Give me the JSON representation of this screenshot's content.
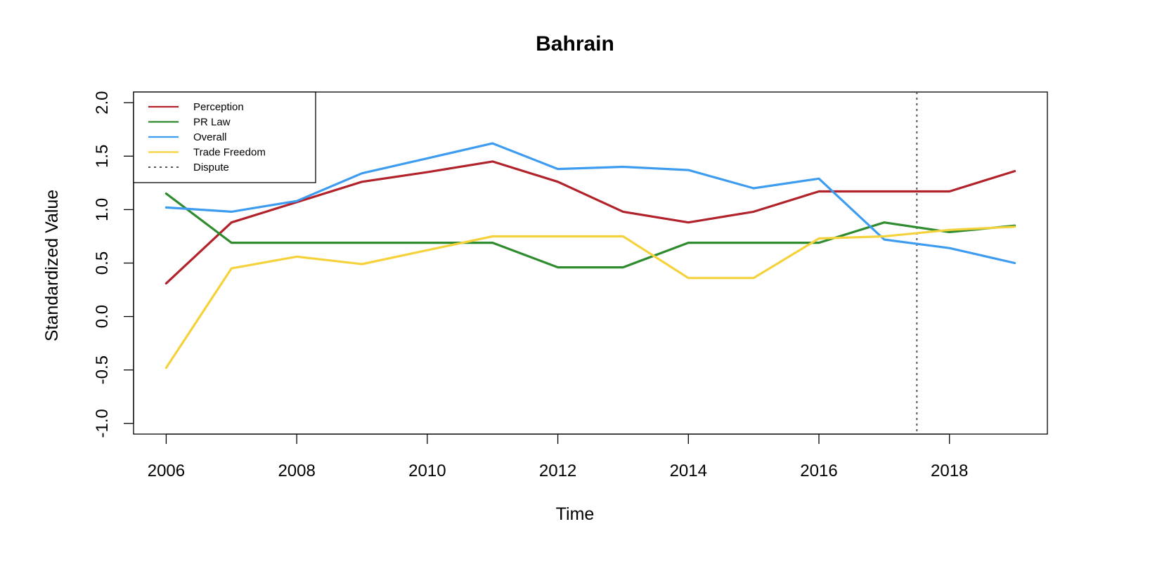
{
  "chart_data": {
    "type": "line",
    "title": "Bahrain",
    "xlabel": "Time",
    "ylabel": "Standardized Value",
    "xlim": [
      2005.5,
      2019.5
    ],
    "ylim": [
      -1.1,
      2.1
    ],
    "x_ticks": [
      2006,
      2008,
      2010,
      2012,
      2014,
      2016,
      2018
    ],
    "x_tick_labels": [
      "2006",
      "2008",
      "2010",
      "2012",
      "2014",
      "2016",
      "2018"
    ],
    "y_ticks": [
      -1.0,
      -0.5,
      0.0,
      0.5,
      1.0,
      1.5,
      2.0
    ],
    "y_tick_labels": [
      "-1.0",
      "-0.5",
      "0.0",
      "0.5",
      "1.0",
      "1.5",
      "2.0"
    ],
    "grid": false,
    "legend_position": "top-left",
    "x": [
      2006,
      2007,
      2008,
      2009,
      2010,
      2011,
      2012,
      2013,
      2014,
      2015,
      2016,
      2017,
      2018,
      2019
    ],
    "series": [
      {
        "name": "Perception",
        "color": "#b2222a",
        "values": [
          0.31,
          0.88,
          1.07,
          1.26,
          1.35,
          1.45,
          1.26,
          0.98,
          0.88,
          0.98,
          1.17,
          1.17,
          1.17,
          1.36
        ]
      },
      {
        "name": "PR Law",
        "color": "#2e8b2e",
        "values": [
          1.15,
          0.69,
          0.69,
          0.69,
          0.69,
          0.69,
          0.46,
          0.46,
          0.69,
          0.69,
          0.69,
          0.88,
          0.79,
          0.85
        ]
      },
      {
        "name": "Overall",
        "color": "#3d9cf0",
        "values": [
          1.02,
          0.98,
          1.08,
          1.34,
          1.48,
          1.62,
          1.38,
          1.4,
          1.37,
          1.2,
          1.29,
          0.72,
          0.64,
          0.5
        ]
      },
      {
        "name": "Trade Freedom",
        "color": "#f5d23c",
        "values": [
          -0.48,
          0.45,
          0.56,
          0.49,
          0.62,
          0.75,
          0.75,
          0.75,
          0.36,
          0.36,
          0.73,
          0.75,
          0.81,
          0.84
        ]
      }
    ],
    "reference_lines": [
      {
        "name": "Dispute",
        "orientation": "vertical",
        "x": 2017.5,
        "style": "dotted",
        "color": "#555555"
      }
    ]
  }
}
